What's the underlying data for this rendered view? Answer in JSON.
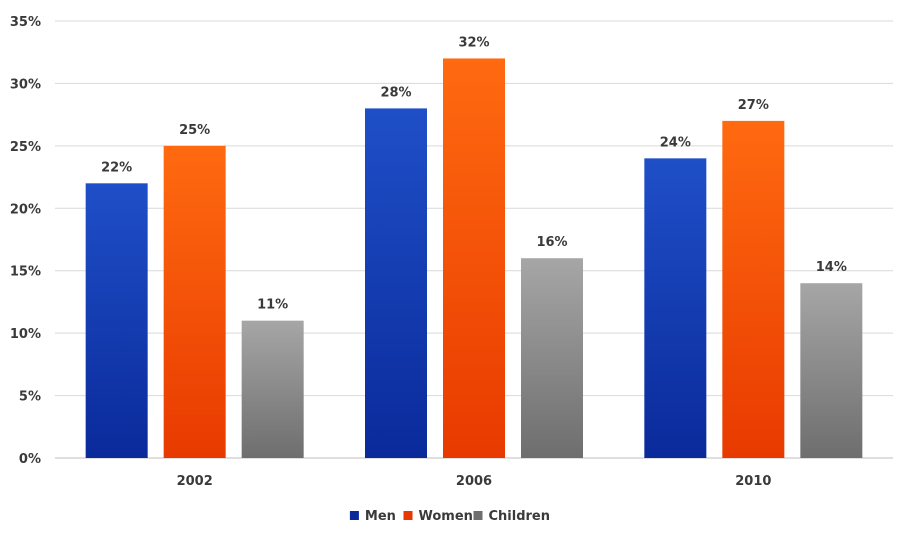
{
  "chart_data": {
    "type": "bar",
    "categories": [
      "2002",
      "2006",
      "2010"
    ],
    "series": [
      {
        "name": "Men",
        "values": [
          22,
          28,
          24
        ],
        "color": "#1f4fc8",
        "color_bottom": "#0a2a9a"
      },
      {
        "name": "Women",
        "values": [
          25,
          32,
          27
        ],
        "color": "#ff6a10",
        "color_bottom": "#e83a00"
      },
      {
        "name": "Children",
        "values": [
          11,
          16,
          14
        ],
        "color": "#a6a6a6",
        "color_bottom": "#6e6e6e"
      }
    ],
    "data_labels": [
      [
        "22%",
        "28%",
        "24%"
      ],
      [
        "25%",
        "32%",
        "27%"
      ],
      [
        "11%",
        "16%",
        "14%"
      ]
    ],
    "y_ticks": [
      0,
      5,
      10,
      15,
      20,
      25,
      30,
      35
    ],
    "y_tick_labels": [
      "0%",
      "5%",
      "10%",
      "15%",
      "20%",
      "25%",
      "30%",
      "35%"
    ],
    "ylim": [
      0,
      35
    ],
    "grid": true,
    "legend_position": "bottom",
    "title": "",
    "xlabel": "",
    "ylabel": ""
  }
}
